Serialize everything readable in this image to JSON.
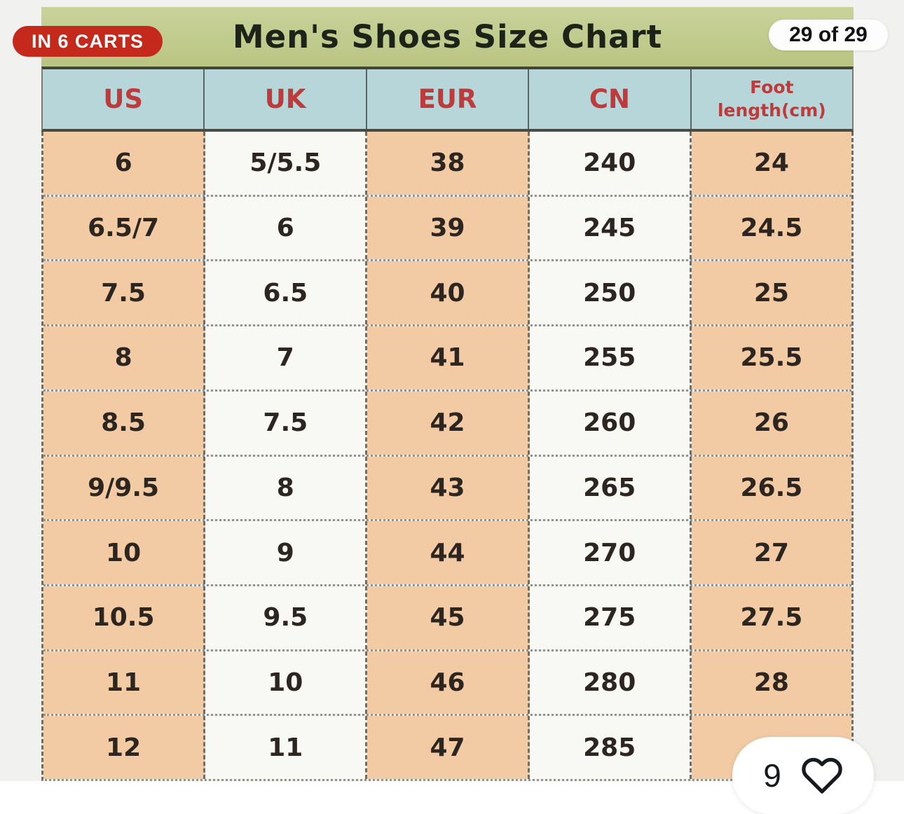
{
  "overlays": {
    "carts_badge": "IN 6 CARTS",
    "pagination": "29 of 29",
    "like_count": "9"
  },
  "chart_data": {
    "type": "table",
    "title": "Men's Shoes Size Chart",
    "columns": [
      {
        "lines": [
          "US"
        ]
      },
      {
        "lines": [
          "UK"
        ]
      },
      {
        "lines": [
          "EUR"
        ]
      },
      {
        "lines": [
          "CN"
        ]
      },
      {
        "lines": [
          "Foot",
          "length(cm)"
        ]
      }
    ],
    "rows": [
      [
        "6",
        "5/5.5",
        "38",
        "240",
        "24"
      ],
      [
        "6.5/7",
        "6",
        "39",
        "245",
        "24.5"
      ],
      [
        "7.5",
        "6.5",
        "40",
        "250",
        "25"
      ],
      [
        "8",
        "7",
        "41",
        "255",
        "25.5"
      ],
      [
        "8.5",
        "7.5",
        "42",
        "260",
        "26"
      ],
      [
        "9/9.5",
        "8",
        "43",
        "265",
        "26.5"
      ],
      [
        "10",
        "9",
        "44",
        "270",
        "27"
      ],
      [
        "10.5",
        "9.5",
        "45",
        "275",
        "27.5"
      ],
      [
        "11",
        "10",
        "46",
        "280",
        "28"
      ],
      [
        "12",
        "11",
        "47",
        "285",
        ""
      ]
    ]
  },
  "colors": {
    "title_bar_green": "#bfca8e",
    "header_blue": "#b6d6da",
    "header_text_red": "#bf3a3a",
    "cell_peach": "#f2cba5",
    "cell_white": "#f8f8f5",
    "badge_red": "#c4291b",
    "gallery_bg": "#f1f1ef"
  }
}
